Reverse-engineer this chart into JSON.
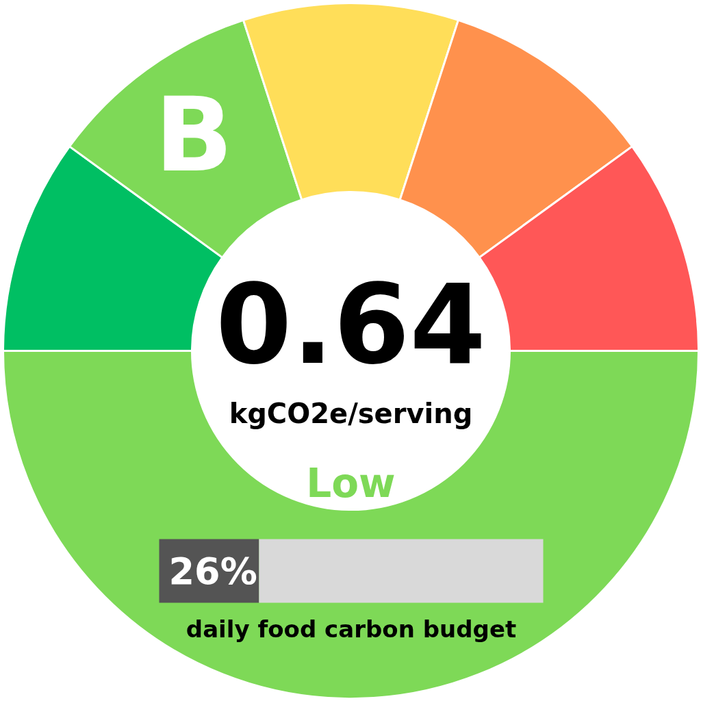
{
  "chart_data": [
    {
      "type": "donut",
      "categories": [
        null,
        "B",
        null,
        null,
        null,
        null
      ],
      "values": [
        10,
        10,
        10,
        10,
        10,
        50
      ],
      "colors": [
        "#00bf63",
        "#7ed957",
        "#ffde59",
        "#ff914d",
        "#ff5757",
        "#7ed957"
      ],
      "annotations": [
        "0.64",
        "kgCO2e/serving",
        "Low"
      ]
    },
    {
      "type": "bar",
      "orientation": "horizontal",
      "stacked": true,
      "categories": [
        null
      ],
      "series": [
        {
          "color": "#545454",
          "values": [
            26
          ],
          "value_labels": [
            "26%"
          ]
        },
        {
          "color": "#d9d9d9",
          "values": [
            74
          ]
        }
      ],
      "xlim": [
        0,
        100
      ],
      "xlabel": "daily food carbon budget"
    }
  ]
}
